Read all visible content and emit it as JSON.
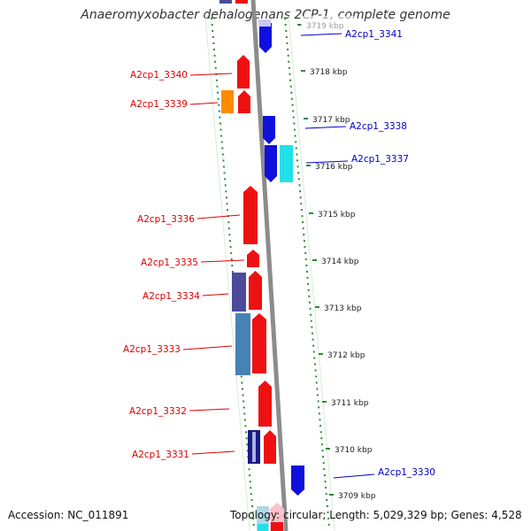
{
  "title": "Anaeromyxobacter dehalogenans 2CP-1, complete genome",
  "footer": {
    "accession": "Accession: NC_011891",
    "summary": "Topology: circular; Length: 5,029,329 bp; Genes: 4,528"
  },
  "colors": {
    "backbone": "#8c8c8c",
    "ring_dots": "#2e8b2e",
    "ring_edge": "#d7ecd7",
    "forward_label": "#dd0000",
    "reverse_label": "#0000cc",
    "tick_text": "#222222"
  },
  "scale": {
    "unit": "kbp",
    "ticks": [
      "3719 kbp",
      "3718 kbp",
      "3717 kbp",
      "3716 kbp",
      "3715 kbp",
      "3714 kbp",
      "3713 kbp",
      "3712 kbp",
      "3711 kbp",
      "3710 kbp",
      "3709 kbp"
    ]
  },
  "genes": [
    {
      "label": "A2cp1_3341",
      "strand": "reverse",
      "color": "#1010dd"
    },
    {
      "label": "A2cp1_3340",
      "strand": "forward",
      "color": "#ee1111"
    },
    {
      "label": "A2cp1_3339",
      "strand": "forward",
      "color": "#ee1111"
    },
    {
      "label": "A2cp1_3338",
      "strand": "reverse",
      "color": "#1010dd"
    },
    {
      "label": "A2cp1_3337",
      "strand": "reverse",
      "color": "#1010dd"
    },
    {
      "label": "A2cp1_3336",
      "strand": "forward",
      "color": "#ee1111"
    },
    {
      "label": "A2cp1_3335",
      "strand": "forward",
      "color": "#ee1111"
    },
    {
      "label": "A2cp1_3334",
      "strand": "forward",
      "color": "#ee1111"
    },
    {
      "label": "A2cp1_3333",
      "strand": "forward",
      "color": "#ee1111"
    },
    {
      "label": "A2cp1_3332",
      "strand": "forward",
      "color": "#ee1111"
    },
    {
      "label": "A2cp1_3331",
      "strand": "forward",
      "color": "#ee1111"
    },
    {
      "label": "A2cp1_3330",
      "strand": "reverse",
      "color": "#1010dd"
    }
  ],
  "feature_blocks": [
    {
      "name": "orange-block",
      "color": "#ff8c00"
    },
    {
      "name": "cyan-block",
      "color": "#22e0e8"
    },
    {
      "name": "slate-block",
      "color": "#4b4b9a"
    },
    {
      "name": "steelblue-block",
      "color": "#4682b4"
    },
    {
      "name": "navy-stripe-block",
      "color": "#1a1a88"
    },
    {
      "name": "light-blue-block",
      "color": "#add8e6"
    },
    {
      "name": "pink-block",
      "color": "#ffc0cb"
    }
  ]
}
